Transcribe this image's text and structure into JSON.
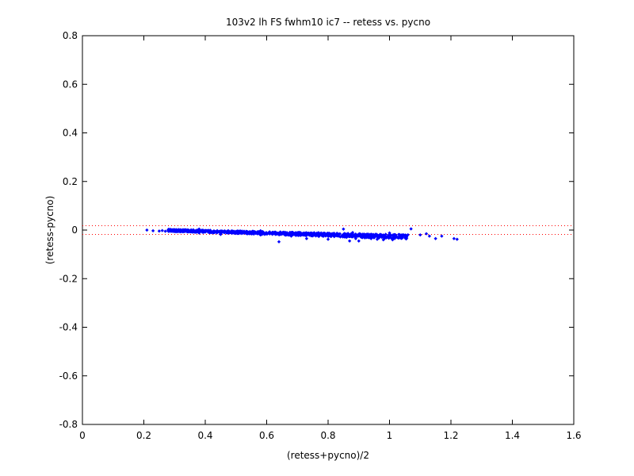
{
  "chart_data": {
    "type": "scatter",
    "title": "103v2 lh FS fwhm10 ic7 -- retess vs. pycno",
    "xlabel": "(retess+pycno)/2",
    "ylabel": "(retess-pycno)",
    "xlim": [
      0,
      1.6
    ],
    "ylim": [
      -0.8,
      0.8
    ],
    "x_ticks": [
      0,
      0.2,
      0.4,
      0.6,
      0.8,
      1,
      1.2,
      1.4,
      1.6
    ],
    "x_tick_labels": [
      "0",
      "0.2",
      "0.4",
      "0.6",
      "0.8",
      "1",
      "1.2",
      "1.4",
      "1.6"
    ],
    "y_ticks": [
      -0.8,
      -0.6,
      -0.4,
      -0.2,
      0,
      0.2,
      0.4,
      0.6,
      0.8
    ],
    "y_tick_labels": [
      "-0.8",
      "-0.6",
      "-0.4",
      "-0.2",
      "0",
      "0.2",
      "0.4",
      "0.6",
      "0.8"
    ],
    "grid": false,
    "reference_lines": [
      0.018,
      -0.018
    ],
    "colors": {
      "points": "#0000ff",
      "reference_lines": "#ff0000",
      "axes": "#000000"
    },
    "x": [
      0.21,
      0.23,
      0.25,
      0.26,
      0.27,
      0.28,
      0.29,
      0.3,
      0.31,
      0.32,
      0.33,
      0.34,
      0.35,
      0.36,
      0.37,
      0.38,
      0.38,
      0.39,
      0.4,
      0.41,
      0.42,
      0.43,
      0.44,
      0.45,
      0.45,
      0.46,
      0.47,
      0.48,
      0.49,
      0.5,
      0.51,
      0.52,
      0.53,
      0.54,
      0.55,
      0.56,
      0.57,
      0.58,
      0.58,
      0.59,
      0.6,
      0.61,
      0.62,
      0.63,
      0.64,
      0.64,
      0.65,
      0.66,
      0.67,
      0.68,
      0.69,
      0.7,
      0.71,
      0.72,
      0.73,
      0.74,
      0.75,
      0.76,
      0.77,
      0.78,
      0.79,
      0.8,
      0.8,
      0.81,
      0.82,
      0.83,
      0.84,
      0.85,
      0.86,
      0.87,
      0.87,
      0.88,
      0.88,
      0.89,
      0.9,
      0.9,
      0.91,
      0.92,
      0.93,
      0.94,
      0.95,
      0.96,
      0.97,
      0.98,
      0.99,
      1.0,
      1.01,
      1.02,
      1.03,
      1.04,
      1.05,
      1.07,
      1.1,
      1.12,
      1.13,
      1.15,
      1.17,
      1.21,
      1.22
    ],
    "y": [
      0.0,
      -0.003,
      -0.004,
      -0.002,
      -0.005,
      -0.004,
      -0.003,
      -0.006,
      -0.005,
      -0.007,
      -0.004,
      -0.006,
      -0.005,
      -0.008,
      -0.004,
      0.004,
      -0.012,
      -0.006,
      -0.007,
      -0.008,
      -0.006,
      -0.01,
      -0.008,
      -0.004,
      -0.018,
      -0.009,
      -0.012,
      -0.008,
      -0.011,
      -0.01,
      -0.013,
      -0.009,
      -0.012,
      -0.01,
      -0.014,
      -0.011,
      -0.015,
      -0.003,
      -0.02,
      -0.012,
      -0.014,
      -0.016,
      -0.013,
      -0.015,
      -0.048,
      -0.018,
      -0.016,
      -0.02,
      -0.017,
      -0.025,
      -0.018,
      -0.019,
      -0.022,
      -0.02,
      -0.035,
      -0.018,
      -0.024,
      -0.021,
      -0.026,
      -0.023,
      -0.022,
      -0.025,
      -0.038,
      -0.023,
      -0.027,
      -0.024,
      -0.028,
      0.004,
      -0.03,
      -0.026,
      -0.045,
      -0.028,
      -0.01,
      -0.035,
      -0.024,
      -0.045,
      -0.03,
      -0.032,
      -0.028,
      -0.035,
      -0.03,
      -0.038,
      -0.025,
      -0.04,
      -0.032,
      -0.012,
      -0.04,
      -0.028,
      -0.018,
      -0.02,
      -0.022,
      0.005,
      -0.02,
      -0.015,
      -0.025,
      -0.035,
      -0.025,
      -0.035,
      -0.038
    ]
  }
}
